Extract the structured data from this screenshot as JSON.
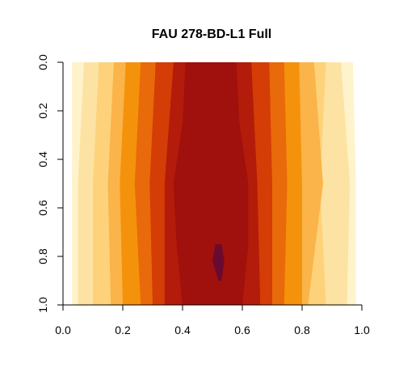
{
  "chart_data": {
    "type": "heatmap",
    "title": "FAU 278-BD-L1 Full",
    "xlabel": "",
    "ylabel": "",
    "xlim": [
      0.0,
      1.0
    ],
    "ylim": [
      1.0,
      0.0
    ],
    "y_axis_reversed": true,
    "x_ticks": [
      "0.0",
      "0.2",
      "0.4",
      "0.6",
      "0.8",
      "1.0"
    ],
    "x_tick_values": [
      0.0,
      0.2,
      0.4,
      0.6,
      0.8,
      1.0
    ],
    "y_ticks": [
      "0.0",
      "0.2",
      "0.4",
      "0.6",
      "0.8",
      "1.0"
    ],
    "y_tick_values": [
      0.0,
      0.2,
      0.4,
      0.6,
      0.8,
      1.0
    ],
    "grid": false,
    "legend": "none",
    "levels": 10,
    "palette": [
      "#ffffff",
      "#fff3cc",
      "#fde3a3",
      "#fdd27a",
      "#fbb44a",
      "#f5920c",
      "#e86a0a",
      "#d43d06",
      "#b31b0a",
      "#a0100c",
      "#6a0a30"
    ],
    "contours": [
      {
        "level": 1,
        "y": [
          0.0,
          0.5,
          1.0
        ],
        "x_left": [
          0.03,
          0.03,
          0.03
        ],
        "x_right": [
          0.97,
          0.98,
          0.98
        ]
      },
      {
        "level": 2,
        "y": [
          0.0,
          0.5,
          1.0
        ],
        "x_left": [
          0.07,
          0.05,
          0.05
        ],
        "x_right": [
          0.93,
          0.96,
          0.95
        ]
      },
      {
        "level": 3,
        "y": [
          0.0,
          0.5,
          1.0
        ],
        "x_left": [
          0.12,
          0.1,
          0.1
        ],
        "x_right": [
          0.88,
          0.86,
          0.88
        ]
      },
      {
        "level": 4,
        "y": [
          0.0,
          0.5,
          1.0
        ],
        "x_left": [
          0.17,
          0.15,
          0.16
        ],
        "x_right": [
          0.84,
          0.87,
          0.82
        ]
      },
      {
        "level": 5,
        "y": [
          0.0,
          0.5,
          1.0
        ],
        "x_left": [
          0.21,
          0.19,
          0.2
        ],
        "x_right": [
          0.79,
          0.8,
          0.8
        ]
      },
      {
        "level": 6,
        "y": [
          0.0,
          0.5,
          1.0
        ],
        "x_left": [
          0.26,
          0.24,
          0.26
        ],
        "x_right": [
          0.74,
          0.75,
          0.74
        ]
      },
      {
        "level": 7,
        "y": [
          0.0,
          0.5,
          1.0
        ],
        "x_left": [
          0.31,
          0.29,
          0.3
        ],
        "x_right": [
          0.69,
          0.7,
          0.7
        ]
      },
      {
        "level": 8,
        "y": [
          0.0,
          0.5,
          1.0
        ],
        "x_left": [
          0.37,
          0.34,
          0.34
        ],
        "x_right": [
          0.63,
          0.65,
          0.66
        ]
      },
      {
        "level": 9,
        "y": [
          0.0,
          0.25,
          0.5,
          0.75,
          1.0
        ],
        "x_left": [
          0.41,
          0.4,
          0.37,
          0.38,
          0.4
        ],
        "x_right": [
          0.58,
          0.59,
          0.62,
          0.62,
          0.6
        ]
      },
      {
        "level": 10,
        "y": [
          0.75,
          0.82,
          0.9
        ],
        "x_left": [
          0.51,
          0.5,
          0.52
        ],
        "x_right": [
          0.53,
          0.54,
          0.53
        ]
      }
    ]
  }
}
